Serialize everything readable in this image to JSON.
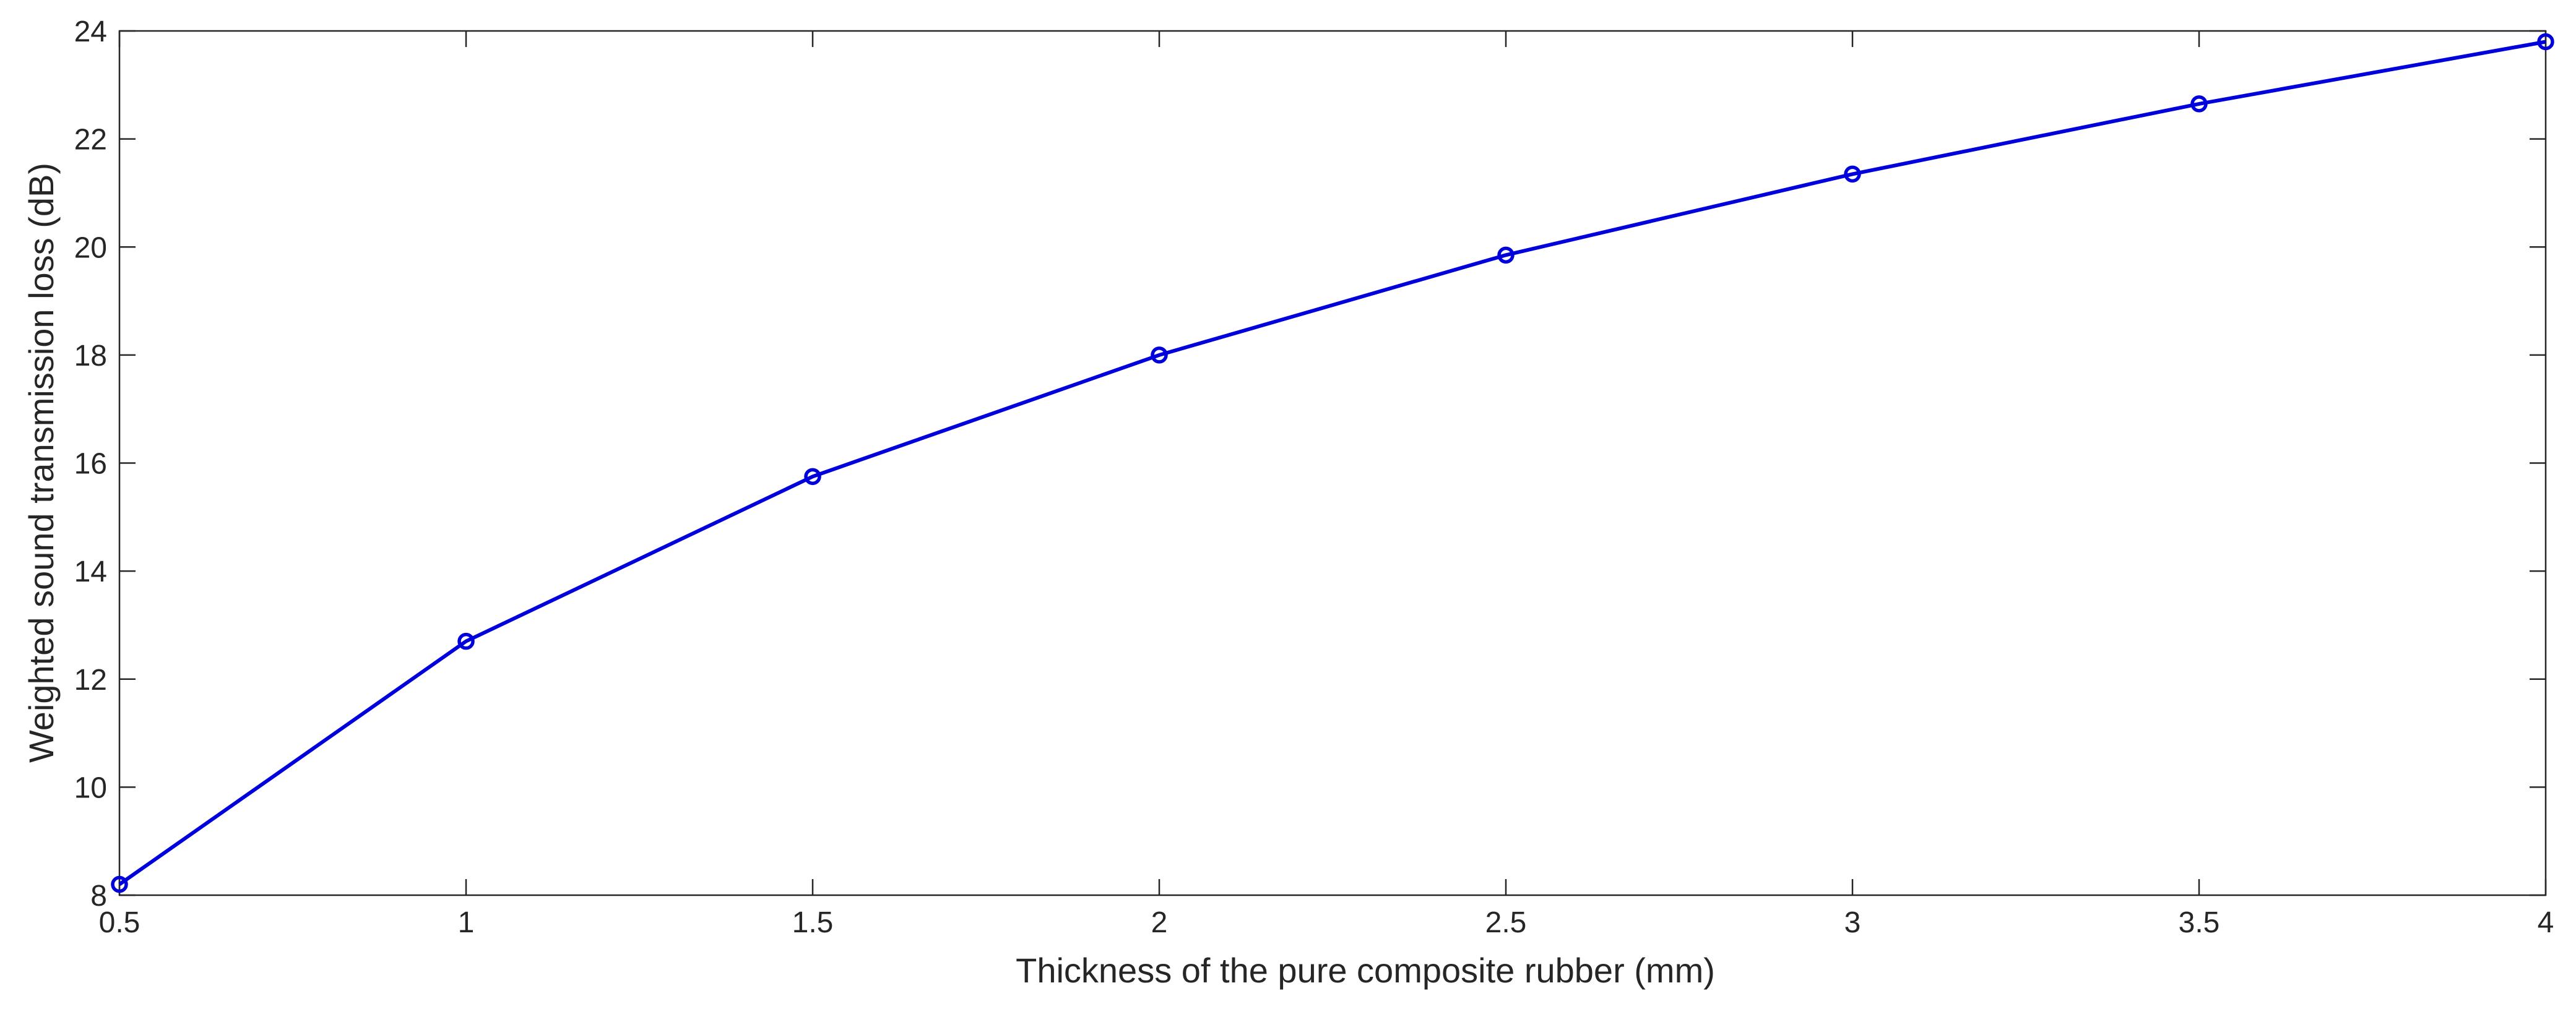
{
  "chart_data": {
    "type": "line",
    "title": "",
    "xlabel": "Thickness of the pure composite rubber (mm)",
    "ylabel": "Weighted sound transmission loss (dB)",
    "xlim": [
      0.5,
      4
    ],
    "ylim": [
      8,
      24
    ],
    "xticks": [
      0.5,
      1,
      1.5,
      2,
      2.5,
      3,
      3.5,
      4
    ],
    "xtick_labels": [
      "0.5",
      "1",
      "1.5",
      "2",
      "2.5",
      "3",
      "3.5",
      "4"
    ],
    "yticks": [
      8,
      10,
      12,
      14,
      16,
      18,
      20,
      22,
      24
    ],
    "ytick_labels": [
      "8",
      "10",
      "12",
      "14",
      "16",
      "18",
      "20",
      "22",
      "24"
    ],
    "grid": false,
    "marker": "circle",
    "line_color": "#0000dd",
    "series": [
      {
        "x": [
          0.5,
          1,
          1.5,
          2,
          2.5,
          3,
          3.5,
          4
        ],
        "y": [
          8.2,
          12.7,
          15.75,
          18.0,
          19.85,
          21.35,
          22.65,
          23.8
        ]
      }
    ]
  }
}
